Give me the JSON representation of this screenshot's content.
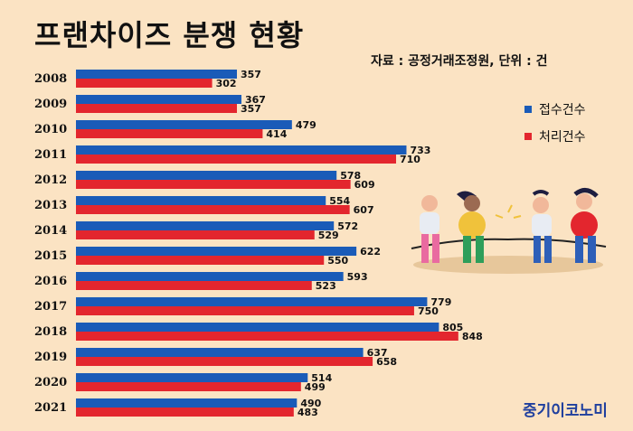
{
  "header": {
    "title": "프랜차이즈 분쟁 현황",
    "source": "자료 : 공정거래조정원, 단위 : 건"
  },
  "legend": [
    {
      "label": "접수건수",
      "color": "#1a5bb8"
    },
    {
      "label": "처리건수",
      "color": "#e3262e"
    }
  ],
  "brand": "중기이코노미",
  "chart_data": {
    "type": "bar",
    "orientation": "horizontal",
    "categories": [
      "2008",
      "2009",
      "2010",
      "2011",
      "2012",
      "2013",
      "2014",
      "2015",
      "2016",
      "2017",
      "2018",
      "2019",
      "2020",
      "2021"
    ],
    "series": [
      {
        "name": "접수건수",
        "color": "#1a5bb8",
        "values": [
          357,
          367,
          479,
          733,
          578,
          554,
          572,
          622,
          593,
          779,
          805,
          637,
          514,
          490
        ]
      },
      {
        "name": "처리건수",
        "color": "#e3262e",
        "values": [
          302,
          357,
          414,
          710,
          609,
          607,
          529,
          550,
          523,
          750,
          848,
          658,
          499,
          483
        ]
      }
    ],
    "title": "프랜차이즈 분쟁 현황",
    "xlabel": "",
    "ylabel": "",
    "grid": false,
    "legend_position": "right"
  }
}
